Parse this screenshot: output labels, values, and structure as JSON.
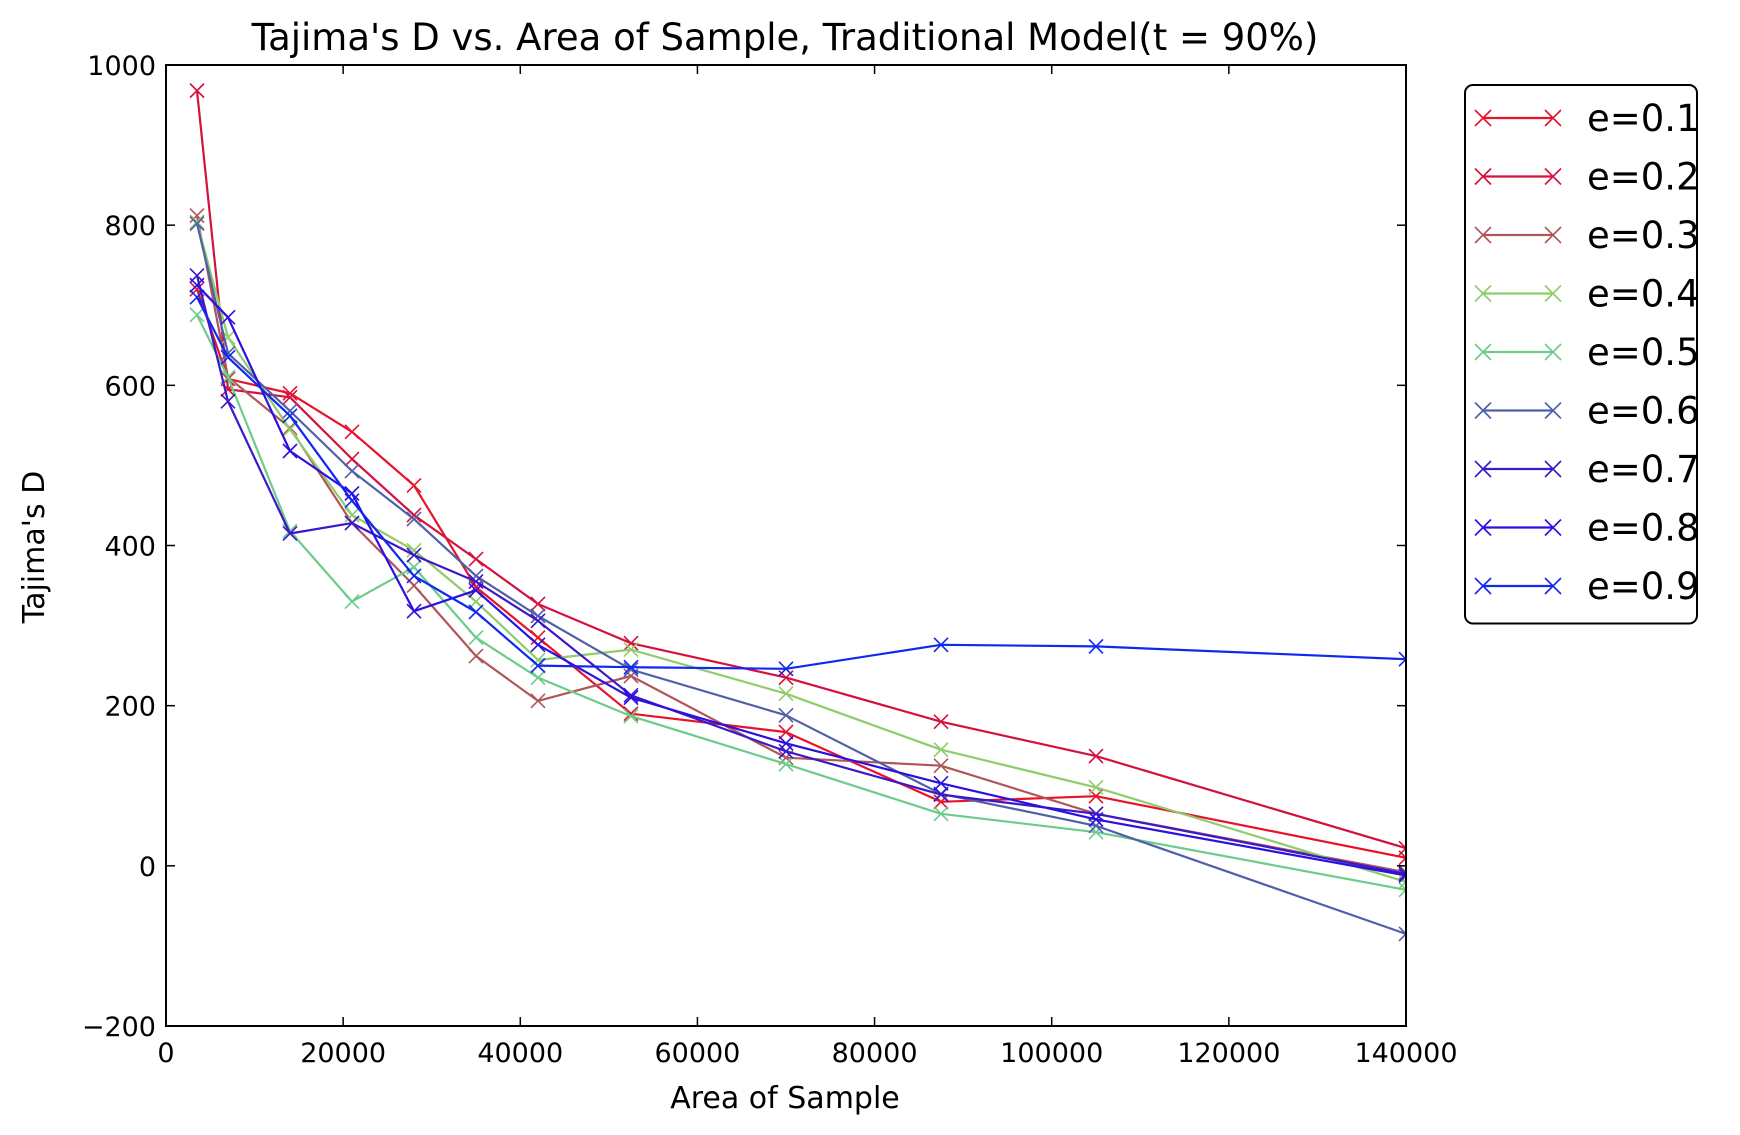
{
  "chart_data": {
    "type": "line",
    "title": "Tajima's D vs. Area of Sample, Traditional Model(t = 90%)",
    "xlabel": "Area of Sample",
    "ylabel": "Tajima's D",
    "xlim": [
      0,
      140000
    ],
    "ylim": [
      -200,
      1000
    ],
    "xticks": [
      0,
      20000,
      40000,
      60000,
      80000,
      100000,
      120000,
      140000
    ],
    "yticks": [
      -200,
      0,
      200,
      400,
      600,
      800,
      1000
    ],
    "ytick_labels": [
      "−200",
      "0",
      "200",
      "400",
      "600",
      "800",
      "1000"
    ],
    "grid": false,
    "legend_position": "outside-right",
    "marker": "x",
    "x": [
      3500,
      7000,
      14000,
      21000,
      28000,
      35000,
      42000,
      52500,
      70000,
      87500,
      105000,
      140000
    ],
    "series": [
      {
        "name": "e=0.1",
        "color": "#e8132b",
        "values": [
          720,
          608,
          590,
          542,
          475,
          348,
          285,
          190,
          167,
          80,
          87,
          10
        ]
      },
      {
        "name": "e=0.2",
        "color": "#d3123f",
        "values": [
          968,
          595,
          585,
          508,
          438,
          383,
          327,
          278,
          235,
          180,
          137,
          22
        ]
      },
      {
        "name": "e=0.3",
        "color": "#b0565a",
        "values": [
          812,
          610,
          547,
          428,
          350,
          262,
          206,
          237,
          135,
          125,
          65,
          -8
        ]
      },
      {
        "name": "e=0.4",
        "color": "#8fcc6b",
        "values": [
          804,
          660,
          545,
          438,
          394,
          330,
          257,
          270,
          215,
          145,
          98,
          -20
        ]
      },
      {
        "name": "e=0.5",
        "color": "#6ccc8a",
        "values": [
          688,
          610,
          418,
          330,
          373,
          285,
          235,
          187,
          127,
          65,
          42,
          -30
        ]
      },
      {
        "name": "e=0.6",
        "color": "#5060a8",
        "values": [
          802,
          640,
          568,
          493,
          433,
          362,
          312,
          245,
          188,
          90,
          50,
          -85
        ]
      },
      {
        "name": "e=0.7",
        "color": "#3c18c8",
        "values": [
          737,
          580,
          415,
          428,
          388,
          355,
          306,
          213,
          143,
          89,
          65,
          -10
        ]
      },
      {
        "name": "e=0.8",
        "color": "#2b10e0",
        "values": [
          725,
          685,
          518,
          465,
          318,
          344,
          276,
          210,
          153,
          103,
          58,
          -12
        ]
      },
      {
        "name": "e=0.9",
        "color": "#1028f0",
        "values": [
          710,
          635,
          562,
          456,
          362,
          317,
          250,
          248,
          246,
          276,
          274,
          258
        ]
      }
    ],
    "series_override_points": {
      "e=0.9": {
        "x": [
          3500,
          7000,
          14000,
          21000,
          28000,
          35000,
          42000,
          52500,
          70000,
          87500,
          105000,
          140000
        ]
      }
    }
  }
}
